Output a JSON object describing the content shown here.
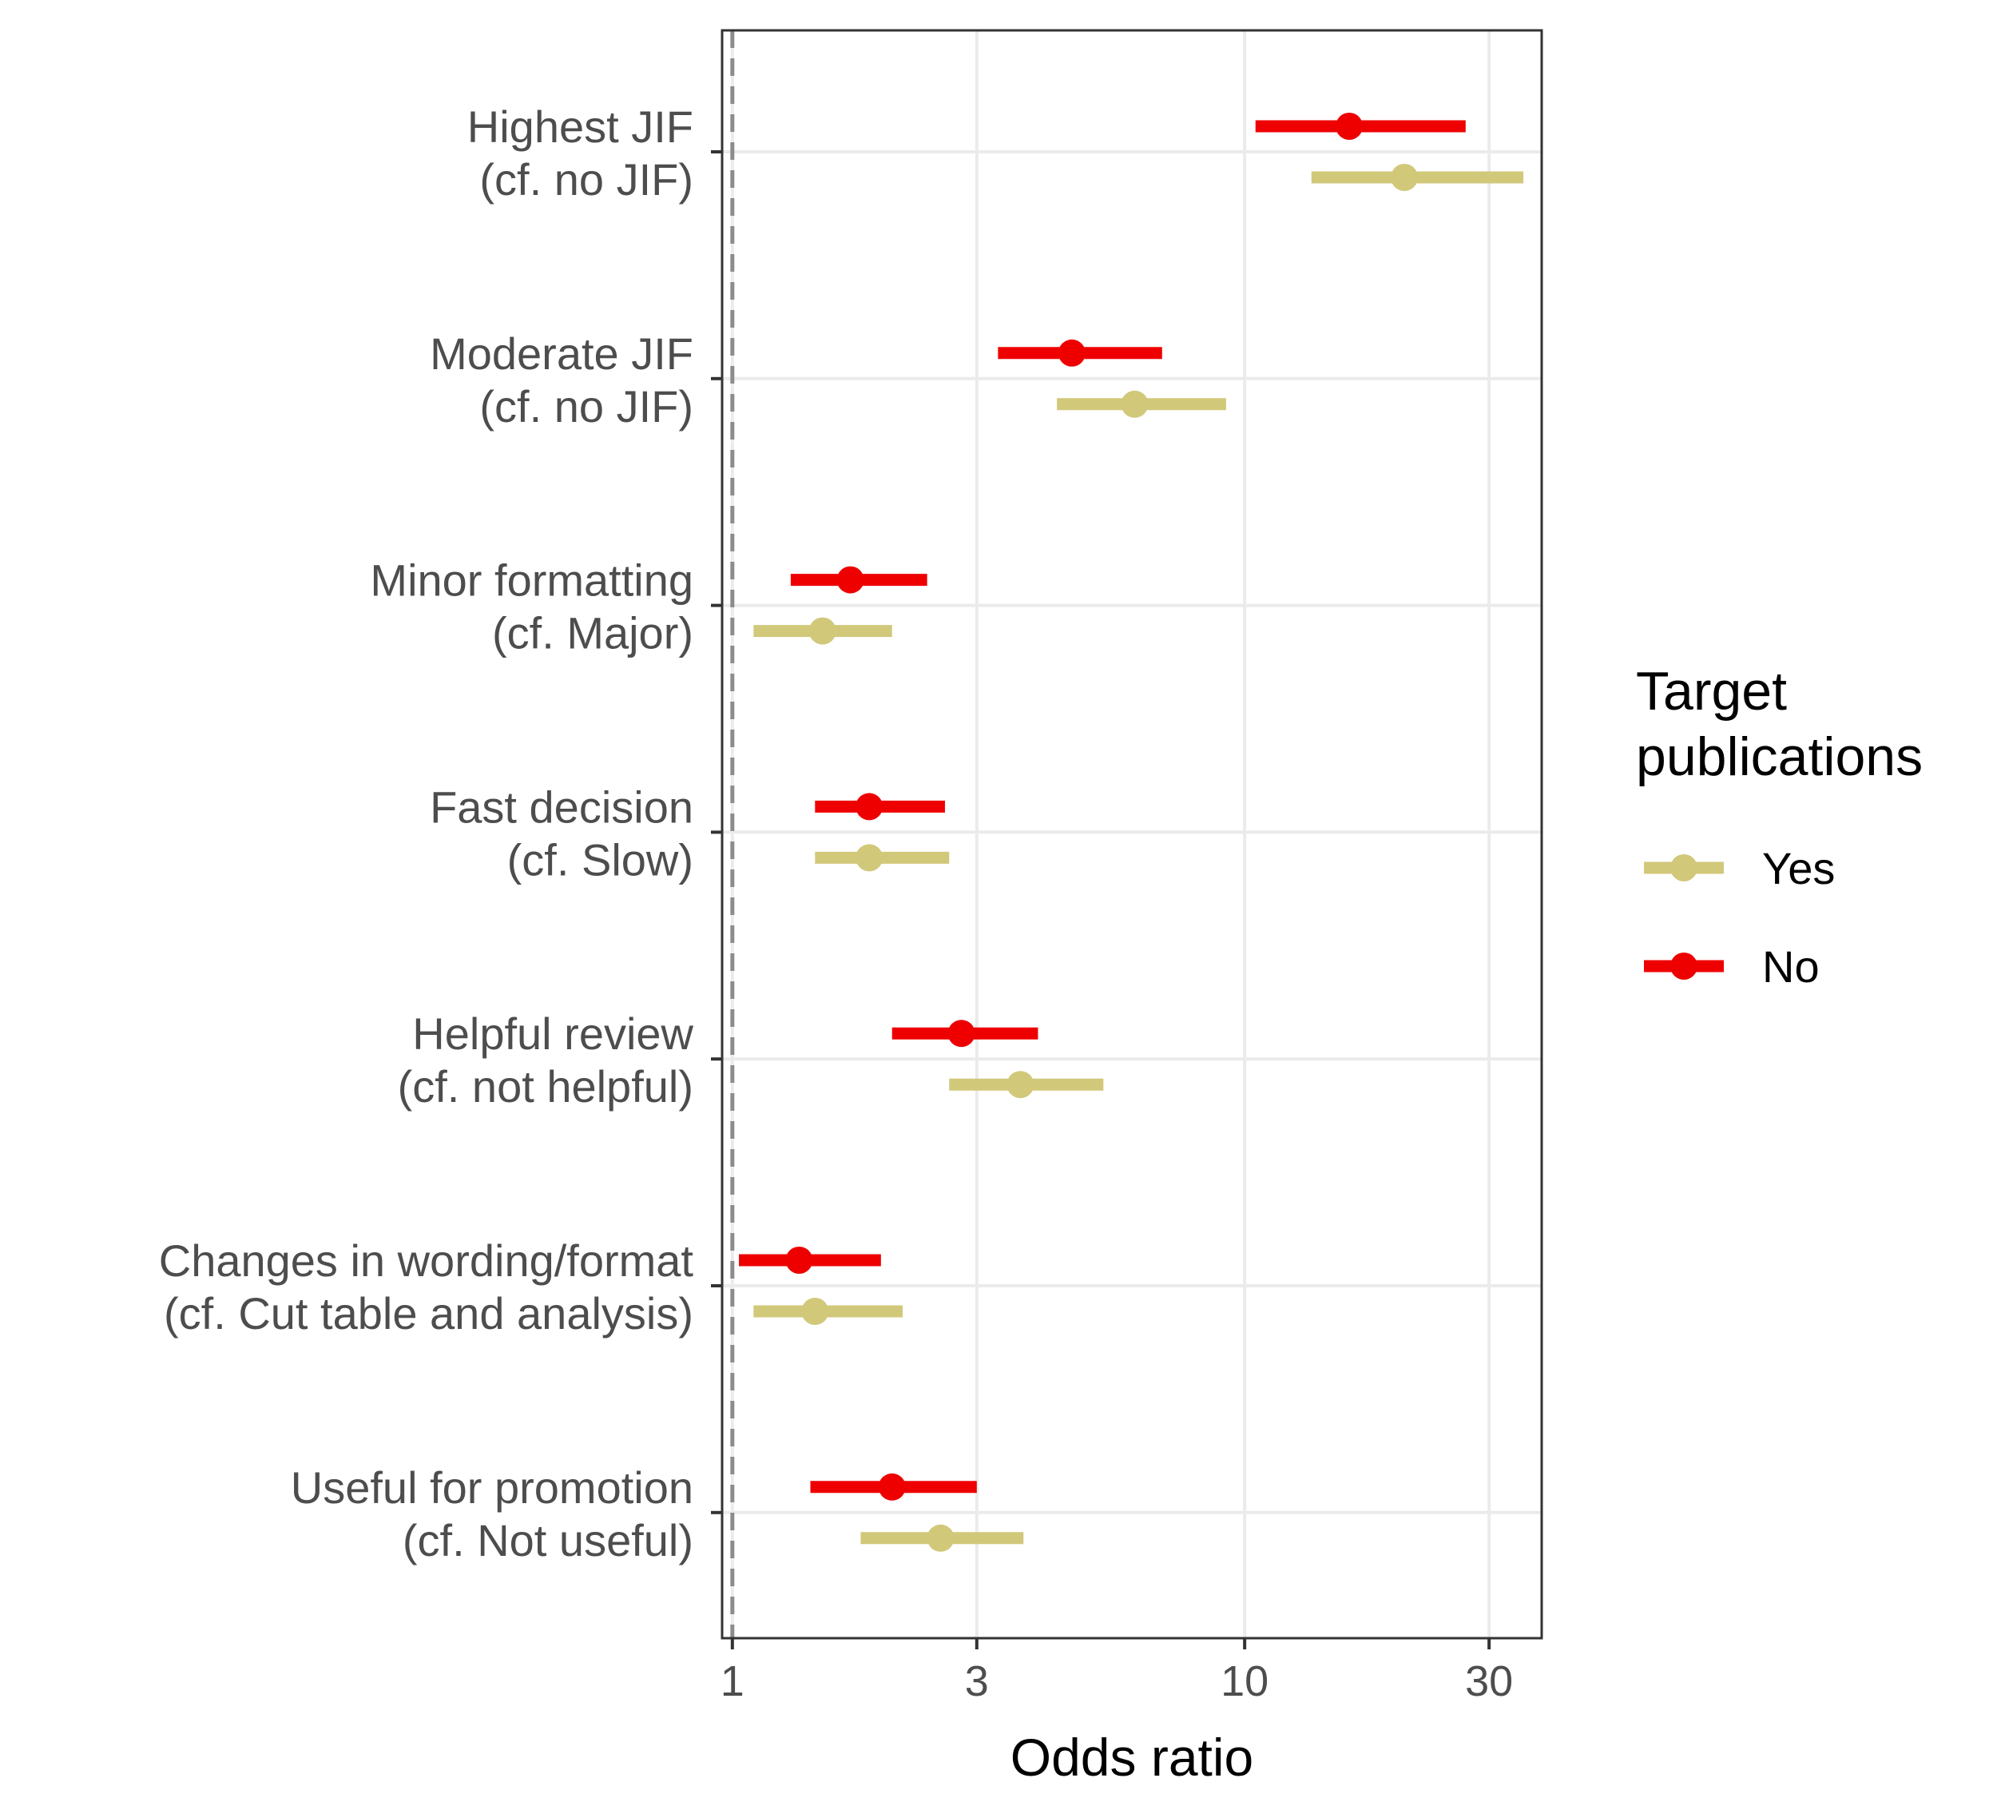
{
  "chart_data": {
    "type": "forest",
    "xlabel": "Odds ratio",
    "x_scale": "log10",
    "xlim": [
      0.955,
      38
    ],
    "x_ticks": [
      1,
      3,
      10,
      30
    ],
    "x_tick_labels": [
      "1",
      "3",
      "10",
      "30"
    ],
    "reference_line": 1,
    "grid": true,
    "legend": {
      "title_lines": [
        "Target",
        "publications"
      ],
      "position": "right",
      "entries": [
        {
          "label": "Yes",
          "color": "#d1c87a"
        },
        {
          "label": "No",
          "color": "#ee0000"
        }
      ]
    },
    "categories": [
      {
        "lines": [
          "Highest JIF",
          "(cf. no JIF)"
        ]
      },
      {
        "lines": [
          "Moderate JIF",
          "(cf. no JIF)"
        ]
      },
      {
        "lines": [
          "Minor formatting",
          "(cf. Major)"
        ]
      },
      {
        "lines": [
          "Fast decision",
          "(cf. Slow)"
        ]
      },
      {
        "lines": [
          "Helpful review",
          "(cf. not helpful)"
        ]
      },
      {
        "lines": [
          "Changes in wording/format",
          "(cf. Cut table and analysis)"
        ]
      },
      {
        "lines": [
          "Useful for promotion",
          "(cf. Not useful)"
        ]
      }
    ],
    "series": [
      {
        "name": "No",
        "color": "#ee0000",
        "estimates": [
          16.0,
          4.6,
          1.7,
          1.85,
          2.8,
          1.35,
          2.05
        ],
        "lower": [
          10.5,
          3.3,
          1.3,
          1.45,
          2.05,
          1.03,
          1.42
        ],
        "upper": [
          27.0,
          6.9,
          2.4,
          2.6,
          3.95,
          1.95,
          3.0
        ]
      },
      {
        "name": "Yes",
        "color": "#d1c87a",
        "estimates": [
          20.5,
          6.1,
          1.5,
          1.85,
          3.65,
          1.45,
          2.55
        ],
        "lower": [
          13.5,
          4.3,
          1.1,
          1.45,
          2.65,
          1.1,
          1.78
        ],
        "upper": [
          35.0,
          9.2,
          2.05,
          2.65,
          5.3,
          2.15,
          3.7
        ]
      }
    ]
  }
}
